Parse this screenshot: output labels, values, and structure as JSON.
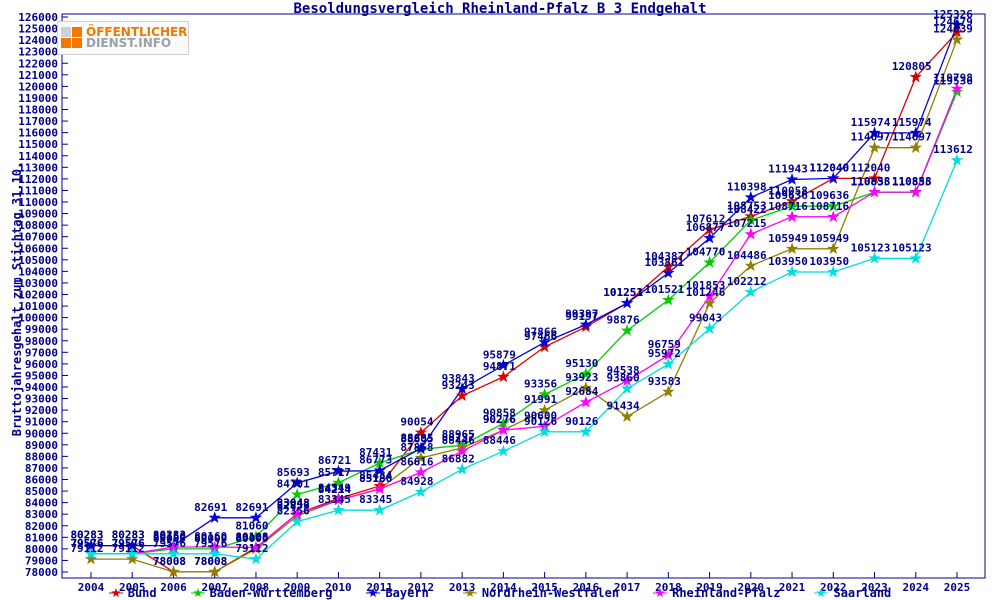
{
  "title": "Besoldungsvergleich Rheinland-Pfalz B 3 Endgehalt",
  "logo": {
    "line1": "ÖFFENTLICHER",
    "line2": "DIENST.INFO"
  },
  "y_axis_title": "Bruttojahresgehalt zum Stichtag 31.10.",
  "chart_data": {
    "type": "line",
    "x": [
      2004,
      2005,
      2006,
      2007,
      2008,
      2009,
      2010,
      2011,
      2012,
      2013,
      2014,
      2015,
      2016,
      2017,
      2018,
      2019,
      2020,
      2021,
      2022,
      2023,
      2024,
      2025
    ],
    "ylim": [
      78000,
      126000
    ],
    "y_tick_step": 1000,
    "grid": false,
    "legend_position": "bottom",
    "frame_color": "#00008b",
    "label_color": "#00008b",
    "series": [
      {
        "name": "Bund",
        "color": "#dd0000",
        "values": [
          80283,
          80283,
          78008,
          78008,
          80108,
          83048,
          84349,
          85434,
          90054,
          93243,
          94871,
          97466,
          99197,
          101253,
          104387,
          107612,
          108753,
          110058,
          112040,
          112040,
          120805,
          124679
        ]
      },
      {
        "name": "Baden-Württemberg",
        "color": "#00cc00",
        "values": [
          79576,
          79576,
          80000,
          80000,
          81060,
          84701,
          85717,
          87431,
          88605,
          88965,
          90858,
          93356,
          95130,
          98876,
          101521,
          104770,
          108422,
          109636,
          109636,
          110835,
          110835,
          119536
        ]
      },
      {
        "name": "Bayern",
        "color": "#0000dd",
        "values": [
          80283,
          80283,
          80283,
          82691,
          82691,
          85693,
          86721,
          86773,
          88685,
          93843,
          95879,
          97866,
          99397,
          101251,
          103861,
          106877,
          110398,
          111943,
          112040,
          115974,
          115974,
          125326
        ]
      },
      {
        "name": "Nordrhein-Westfalen",
        "color": "#8f8000",
        "values": [
          79112,
          79112,
          78008,
          78008,
          80000,
          82856,
          84214,
          85186,
          87858,
          88737,
          90276,
          91991,
          93923,
          91434,
          93583,
          101246,
          104486,
          105949,
          105949,
          114697,
          114697,
          124039
        ]
      },
      {
        "name": "Rheinland-Pfalz",
        "color": "#ff00ff",
        "values": [
          79576,
          79576,
          80160,
          80160,
          80108,
          83048,
          84214,
          85186,
          86616,
          88446,
          90276,
          90600,
          92684,
          94538,
          96759,
          101853,
          107215,
          108716,
          108716,
          110858,
          110858,
          119798
        ]
      },
      {
        "name": "Saarland",
        "color": "#00dede",
        "values": [
          79576,
          79576,
          79576,
          79576,
          79112,
          82356,
          83345,
          83345,
          84928,
          86882,
          88446,
          90126,
          90126,
          93860,
          95972,
          99043,
          102212,
          103950,
          103950,
          105123,
          105123,
          113612
        ]
      }
    ]
  }
}
